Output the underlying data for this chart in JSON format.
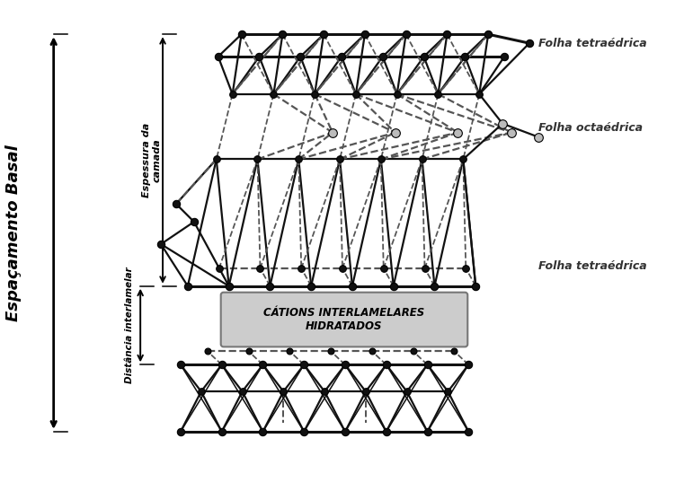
{
  "bg_color": "#ffffff",
  "label_espessura": "Espessura da\ncamada",
  "label_distancia": "Distância interlamelar",
  "label_espacamento": "Espaçamento Basal",
  "label_folha_tet1": "Folha tetraédrica",
  "label_folha_oct": "Folha octaédrica",
  "label_folha_tet2": "Folha tetraédrica",
  "label_cations": "CÁTIONS INTERLAMELARES\nHIDRATADOS",
  "node_color": "#111111",
  "node_color_light": "#bbbbbb",
  "dashed_color": "#555555"
}
